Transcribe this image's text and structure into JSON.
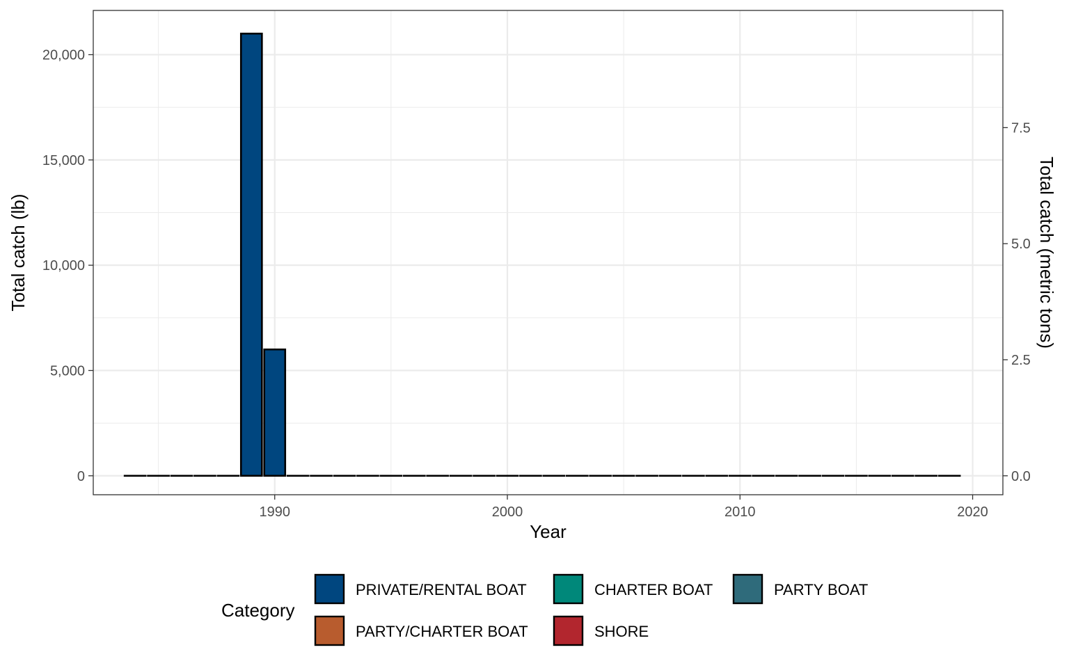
{
  "chart_data": {
    "type": "bar",
    "xlabel": "Year",
    "ylabel": "Total catch (lb)",
    "ylabel_secondary": "Total catch (metric tons)",
    "xlim": [
      1982.2,
      2021.3
    ],
    "ylim": [
      -900,
      22100
    ],
    "x_ticks": [
      1990,
      2000,
      2010,
      2020
    ],
    "x_tick_labels": [
      "1990",
      "2000",
      "2010",
      "2020"
    ],
    "y_ticks": [
      0,
      5000,
      10000,
      15000,
      20000
    ],
    "y_tick_labels": [
      "0",
      "5,000",
      "10,000",
      "15,000",
      "20,000"
    ],
    "y2_ticks": [
      0.0,
      2.5,
      5.0,
      7.5
    ],
    "y2_tick_labels": [
      "0.0",
      "2.5",
      "5.0",
      "7.5"
    ],
    "grid": true,
    "legend_position": "bottom",
    "legend_title": "Category",
    "legend": [
      {
        "name": "PRIVATE/RENTAL BOAT",
        "color": "#00467f"
      },
      {
        "name": "CHARTER BOAT",
        "color": "#00887a"
      },
      {
        "name": "PARTY BOAT",
        "color": "#2f6b7b"
      },
      {
        "name": "PARTY/CHARTER BOAT",
        "color": "#b85c2e"
      },
      {
        "name": "SHORE",
        "color": "#b2262e"
      }
    ],
    "x": [
      1984,
      1985,
      1986,
      1987,
      1988,
      1989,
      1990,
      1991,
      1992,
      1993,
      1994,
      1995,
      1996,
      1997,
      1998,
      1999,
      2000,
      2001,
      2002,
      2003,
      2004,
      2005,
      2006,
      2007,
      2008,
      2009,
      2010,
      2011,
      2012,
      2013,
      2014,
      2015,
      2016,
      2017,
      2018,
      2019
    ],
    "series": [
      {
        "name": "PRIVATE/RENTAL BOAT",
        "values": [
          0,
          0,
          0,
          0,
          0,
          21000,
          6000,
          0,
          0,
          0,
          0,
          0,
          0,
          0,
          0,
          0,
          0,
          0,
          0,
          0,
          0,
          0,
          0,
          0,
          0,
          0,
          0,
          0,
          0,
          0,
          0,
          0,
          0,
          0,
          0,
          0
        ]
      }
    ]
  }
}
